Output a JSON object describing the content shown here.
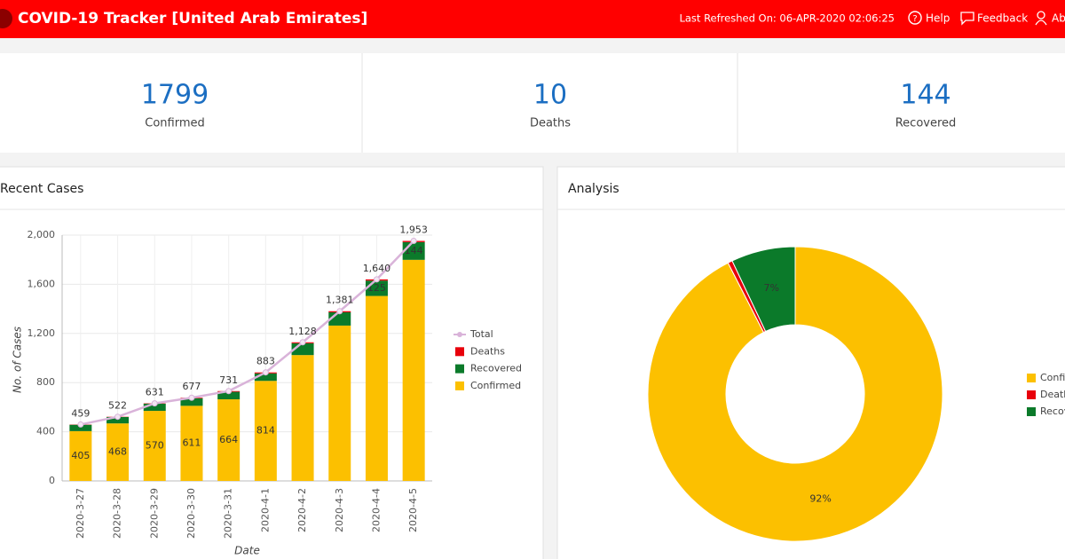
{
  "header": {
    "title": "COVID-19 Tracker [United Arab Emirates]",
    "refreshed": "Last Refreshed On: 06-APR-2020 02:06:25",
    "links": [
      "Help",
      "Feedback",
      "Ab"
    ]
  },
  "stats": [
    {
      "value": 1799,
      "label": "Confirmed"
    },
    {
      "value": 10,
      "label": "Deaths"
    },
    {
      "value": 144,
      "label": "Recovered"
    }
  ],
  "chart_data": [
    {
      "type": "bar",
      "stacked": true,
      "title": "Recent Cases",
      "x_label": "Date",
      "y_label": "No. of Cases",
      "categories": [
        "2020-3-27",
        "2020-3-28",
        "2020-3-29",
        "2020-3-30",
        "2020-3-31",
        "2020-4-1",
        "2020-4-2",
        "2020-4-3",
        "2020-4-4",
        "2020-4-5"
      ],
      "ylim": [
        0,
        2000
      ],
      "yticks": [
        0,
        400,
        800,
        {
          "value": 1200,
          "label": "1,200"
        },
        {
          "value": 1600,
          "label": "1,600"
        },
        {
          "value": 2000,
          "label": "2,000"
        }
      ],
      "grid": true,
      "legend": "right",
      "series": [
        {
          "name": "Total",
          "type": "line",
          "color": "#d9b3d9",
          "values": [
            459,
            522,
            631,
            677,
            731,
            883,
            1128,
            1381,
            1640,
            1953
          ],
          "value_labels": [
            "459",
            "522",
            "631",
            "677",
            "731",
            "883",
            "1,128",
            "1,381",
            "1,640",
            "1,953"
          ]
        },
        {
          "name": "Deaths",
          "color": "#e8000b",
          "values": [
            2,
            2,
            3,
            5,
            6,
            8,
            8,
            9,
            10,
            10
          ]
        },
        {
          "name": "Recovered",
          "color": "#0b7a2a",
          "values": [
            52,
            52,
            58,
            61,
            61,
            61,
            96,
            108,
            125,
            144
          ],
          "value_labels": [
            null,
            null,
            null,
            null,
            null,
            null,
            null,
            null,
            "125",
            "144"
          ]
        },
        {
          "name": "Confirmed",
          "color": "#fcc000",
          "values": [
            405,
            468,
            570,
            611,
            664,
            814,
            1024,
            1264,
            1505,
            1799
          ],
          "value_labels": [
            "405",
            "468",
            "570",
            "611",
            "664",
            "814",
            null,
            null,
            null,
            null
          ]
        }
      ]
    },
    {
      "type": "pie",
      "donut": true,
      "title": "Analysis",
      "legend": "right",
      "categories": [
        "Confirmed",
        "Deaths",
        "Recovered"
      ],
      "values": [
        92,
        0.5,
        7
      ],
      "value_labels": [
        "92%",
        null,
        "7%"
      ],
      "colors": [
        "#fcc000",
        "#e8000b",
        "#0b7a2a"
      ]
    }
  ]
}
